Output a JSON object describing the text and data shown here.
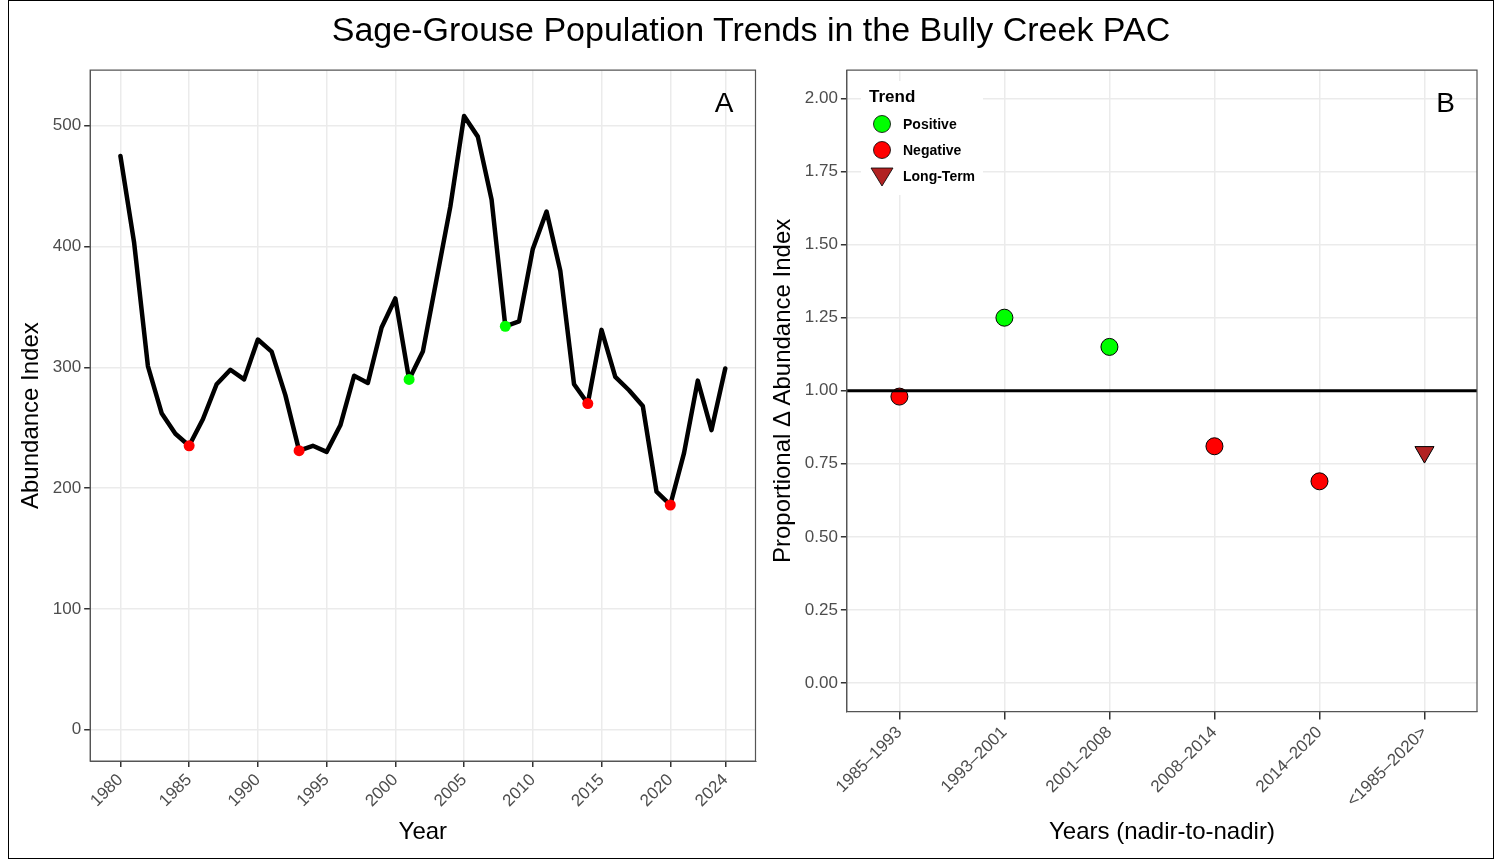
{
  "chart_data": [
    {
      "type": "line",
      "title": "Sage-Grouse Population Trends in the Bully Creek PAC",
      "xlabel": "Year",
      "ylabel": "Abundance Index",
      "annotations": [
        "A"
      ],
      "xlim": [
        1977.8,
        2026.2
      ],
      "xticks": [
        1980,
        1985,
        1990,
        1995,
        2000,
        2005,
        2010,
        2015,
        2020,
        2024
      ],
      "ylim": [
        -26,
        546
      ],
      "yticks": [
        0,
        100,
        200,
        300,
        400,
        500
      ],
      "grid": true,
      "legend": false,
      "series": [
        {
          "type": "line",
          "color": "#000000",
          "marker": "none",
          "x": [
            1980,
            1981,
            1982,
            1983,
            1984,
            1985,
            1986,
            1987,
            1988,
            1989,
            1990,
            1991,
            1992,
            1993,
            1994,
            1995,
            1996,
            1997,
            1998,
            1999,
            2000,
            2001,
            2002,
            2003,
            2004,
            2005,
            2006,
            2007,
            2008,
            2009,
            2010,
            2011,
            2012,
            2013,
            2014,
            2015,
            2016,
            2017,
            2018,
            2019,
            2020,
            2021,
            2022,
            2023,
            2024
          ],
          "values": [
            475,
            403,
            301,
            262,
            245,
            235,
            257,
            286,
            298,
            290,
            323,
            313,
            277,
            231,
            235,
            230,
            252,
            293,
            287,
            333,
            357,
            290,
            313,
            373,
            433,
            508,
            491,
            439,
            334,
            338,
            398,
            429,
            380,
            286,
            270,
            331,
            292,
            281,
            268,
            197,
            186,
            229,
            289,
            248,
            299
          ]
        },
        {
          "type": "scatter",
          "color": "#ff0000",
          "marker": "circle",
          "x": [
            1985,
            1993,
            2014,
            2020
          ],
          "values": [
            235,
            231,
            270,
            186
          ]
        },
        {
          "type": "scatter",
          "color": "#00ff00",
          "marker": "circle",
          "x": [
            2001,
            2008
          ],
          "values": [
            290,
            334
          ]
        }
      ]
    },
    {
      "type": "scatter",
      "xlabel": "Years (nadir-to-nadir)",
      "ylabel": "Proportional Δ Abundance Index",
      "legend_title": "Trend",
      "annotations": [
        "B"
      ],
      "categories": [
        "1985–1993",
        "1993–2001",
        "2001–2008",
        "2008–2014",
        "2014–2020",
        "<1985–2020>"
      ],
      "ylim": [
        -0.098,
        2.097
      ],
      "yticks": [
        {
          "value": 0,
          "label": "0.00"
        },
        {
          "value": 0.25,
          "label": "0.25"
        },
        {
          "value": 0.5,
          "label": "0.50"
        },
        {
          "value": 0.75,
          "label": "0.75"
        },
        {
          "value": 1,
          "label": "1.00"
        },
        {
          "value": 1.25,
          "label": "1.25"
        },
        {
          "value": 1.5,
          "label": "1.50"
        },
        {
          "value": 1.75,
          "label": "1.75"
        },
        {
          "value": 2,
          "label": "2.00"
        }
      ],
      "grid": true,
      "legend": "top left",
      "ref_lines": [
        {
          "axis": "y",
          "value": 1,
          "color": "#000000"
        }
      ],
      "series": [
        {
          "name": "Positive",
          "color": "#00ff00",
          "marker": "circle",
          "values": [
            null,
            1.25,
            1.15,
            null,
            null,
            null
          ]
        },
        {
          "name": "Negative",
          "color": "#ff0000",
          "marker": "circle",
          "values": [
            0.98,
            null,
            null,
            0.81,
            0.69,
            null
          ]
        },
        {
          "name": "Long-Term",
          "color": "#b22222",
          "marker": "triangle",
          "values": [
            null,
            null,
            null,
            null,
            null,
            0.79
          ]
        }
      ]
    }
  ]
}
